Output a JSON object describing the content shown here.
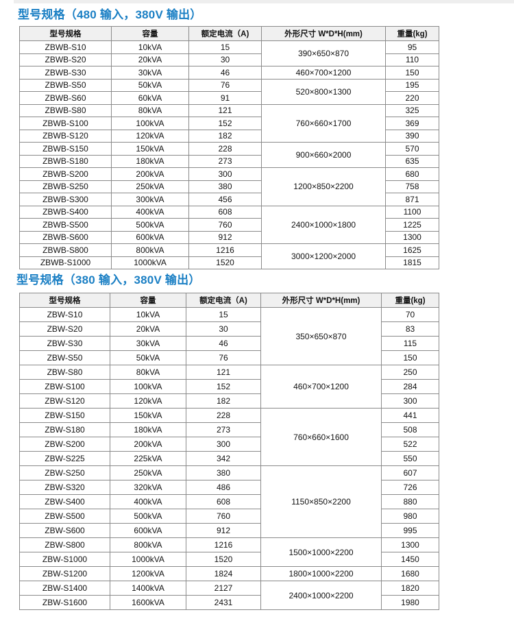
{
  "table1": {
    "title": "型号规格（480 输入，380V 输出）",
    "headers": [
      "型号规格",
      "容量",
      "额定电流（A)",
      "外形尺寸 W*D*H(mm)",
      "重量(kg)"
    ],
    "rows": [
      {
        "model": "ZBWB-S10",
        "capacity": "10kVA",
        "current": "15",
        "weight": "95"
      },
      {
        "model": "ZBWB-S20",
        "capacity": "20kVA",
        "current": "30",
        "weight": "110"
      },
      {
        "model": "ZBWB-S30",
        "capacity": "30kVA",
        "current": "46",
        "weight": "150"
      },
      {
        "model": "ZBWB-S50",
        "capacity": "50kVA",
        "current": "76",
        "weight": "195"
      },
      {
        "model": "ZBWB-S60",
        "capacity": "60kVA",
        "current": "91",
        "weight": "220"
      },
      {
        "model": "ZBWB-S80",
        "capacity": "80kVA",
        "current": "121",
        "weight": "325"
      },
      {
        "model": "ZBWB-S100",
        "capacity": "100kVA",
        "current": "152",
        "weight": "369"
      },
      {
        "model": "ZBWB-S120",
        "capacity": "120kVA",
        "current": "182",
        "weight": "390"
      },
      {
        "model": "ZBWB-S150",
        "capacity": "150kVA",
        "current": "228",
        "weight": "570"
      },
      {
        "model": "ZBWB-S180",
        "capacity": "180kVA",
        "current": "273",
        "weight": "635"
      },
      {
        "model": "ZBWB-S200",
        "capacity": "200kVA",
        "current": "300",
        "weight": "680"
      },
      {
        "model": "ZBWB-S250",
        "capacity": "250kVA",
        "current": "380",
        "weight": "758"
      },
      {
        "model": "ZBWB-S300",
        "capacity": "300kVA",
        "current": "456",
        "weight": "871"
      },
      {
        "model": "ZBWB-S400",
        "capacity": "400kVA",
        "current": "608",
        "weight": "1100"
      },
      {
        "model": "ZBWB-S500",
        "capacity": "500kVA",
        "current": "760",
        "weight": "1225"
      },
      {
        "model": "ZBWB-S600",
        "capacity": "600kVA",
        "current": "912",
        "weight": "1300"
      },
      {
        "model": "ZBWB-S800",
        "capacity": "800kVA",
        "current": "1216",
        "weight": "1625"
      },
      {
        "model": "ZBWB-S1000",
        "capacity": "1000kVA",
        "current": "1520",
        "weight": "1815"
      }
    ],
    "dimensions": [
      {
        "value": "390×650×870",
        "rows": 2
      },
      {
        "value": "460×700×1200",
        "rows": 1
      },
      {
        "value": "520×800×1300",
        "rows": 2
      },
      {
        "value": "760×660×1700",
        "rows": 3
      },
      {
        "value": "900×660×2000",
        "rows": 2
      },
      {
        "value": "1200×850×2200",
        "rows": 3
      },
      {
        "value": "2400×1000×1800",
        "rows": 3
      },
      {
        "value": "3000×1200×2000",
        "rows": 2
      }
    ]
  },
  "table2": {
    "title": "型号规格（380 输入，380V 输出）",
    "headers": [
      "型号规格",
      "容量",
      "额定电流（A)",
      "外形尺寸 W*D*H(mm)",
      "重量(kg)"
    ],
    "rows": [
      {
        "model": "ZBW-S10",
        "capacity": "10kVA",
        "current": "15",
        "weight": "70"
      },
      {
        "model": "ZBW-S20",
        "capacity": "20kVA",
        "current": "30",
        "weight": "83"
      },
      {
        "model": "ZBW-S30",
        "capacity": "30kVA",
        "current": "46",
        "weight": "115"
      },
      {
        "model": "ZBW-S50",
        "capacity": "50kVA",
        "current": "76",
        "weight": "150"
      },
      {
        "model": "ZBW-S80",
        "capacity": "80kVA",
        "current": "121",
        "weight": "250"
      },
      {
        "model": "ZBW-S100",
        "capacity": "100kVA",
        "current": "152",
        "weight": "284"
      },
      {
        "model": "ZBW-S120",
        "capacity": "120kVA",
        "current": "182",
        "weight": "300"
      },
      {
        "model": "ZBW-S150",
        "capacity": "150kVA",
        "current": "228",
        "weight": "441"
      },
      {
        "model": "ZBW-S180",
        "capacity": "180kVA",
        "current": "273",
        "weight": "508"
      },
      {
        "model": "ZBW-S200",
        "capacity": "200kVA",
        "current": "300",
        "weight": "522"
      },
      {
        "model": "ZBW-S225",
        "capacity": "225kVA",
        "current": "342",
        "weight": "550"
      },
      {
        "model": "ZBW-S250",
        "capacity": "250kVA",
        "current": "380",
        "weight": "607"
      },
      {
        "model": "ZBW-S320",
        "capacity": "320kVA",
        "current": "486",
        "weight": "726"
      },
      {
        "model": "ZBW-S400",
        "capacity": "400kVA",
        "current": "608",
        "weight": "880"
      },
      {
        "model": "ZBW-S500",
        "capacity": "500kVA",
        "current": "760",
        "weight": "980"
      },
      {
        "model": "ZBW-S600",
        "capacity": "600kVA",
        "current": "912",
        "weight": "995"
      },
      {
        "model": "ZBW-S800",
        "capacity": "800kVA",
        "current": "1216",
        "weight": "1300"
      },
      {
        "model": "ZBW-S1000",
        "capacity": "1000kVA",
        "current": "1520",
        "weight": "1450"
      },
      {
        "model": "ZBW-S1200",
        "capacity": "1200kVA",
        "current": "1824",
        "weight": "1680"
      },
      {
        "model": "ZBW-S1400",
        "capacity": "1400kVA",
        "current": "2127",
        "weight": "1820"
      },
      {
        "model": "ZBW-S1600",
        "capacity": "1600kVA",
        "current": "2431",
        "weight": "1980"
      }
    ],
    "dimensions": [
      {
        "value": "350×650×870",
        "rows": 4
      },
      {
        "value": "460×700×1200",
        "rows": 3
      },
      {
        "value": "760×660×1600",
        "rows": 4
      },
      {
        "value": "1150×850×2200",
        "rows": 5
      },
      {
        "value": "1500×1000×2200",
        "rows": 2
      },
      {
        "value": "1800×1000×2200",
        "rows": 1
      },
      {
        "value": "2400×1000×2200",
        "rows": 2
      }
    ]
  }
}
